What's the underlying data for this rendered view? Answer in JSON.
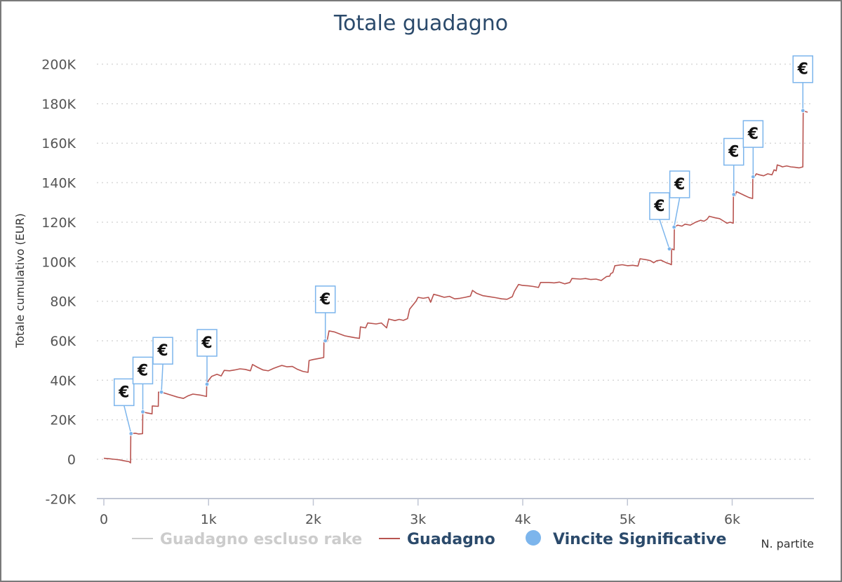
{
  "chart_data": {
    "type": "line",
    "title": "Totale guadagno",
    "ylabel": "Totale cumulativo (EUR)",
    "xlabel": "N. partite",
    "xlim": [
      0,
      6750
    ],
    "ylim": [
      -20000,
      200000
    ],
    "x_ticks": [
      {
        "value": 0,
        "label": "0"
      },
      {
        "value": 1000,
        "label": "1k"
      },
      {
        "value": 2000,
        "label": "2k"
      },
      {
        "value": 3000,
        "label": "3k"
      },
      {
        "value": 4000,
        "label": "4k"
      },
      {
        "value": 5000,
        "label": "5k"
      },
      {
        "value": 6000,
        "label": "6k"
      }
    ],
    "y_ticks": [
      {
        "value": -20000,
        "label": "-20K"
      },
      {
        "value": 0,
        "label": "0"
      },
      {
        "value": 20000,
        "label": "20K"
      },
      {
        "value": 40000,
        "label": "40K"
      },
      {
        "value": 60000,
        "label": "60K"
      },
      {
        "value": 80000,
        "label": "80K"
      },
      {
        "value": 100000,
        "label": "100K"
      },
      {
        "value": 120000,
        "label": "120K"
      },
      {
        "value": 140000,
        "label": "140K"
      },
      {
        "value": 160000,
        "label": "160K"
      },
      {
        "value": 180000,
        "label": "180K"
      },
      {
        "value": 200000,
        "label": "200K"
      }
    ],
    "grid": true,
    "legend_position": "bottom",
    "series": [
      {
        "name": "Guadagno escluso rake",
        "color": "#cccccc",
        "hidden": true,
        "points": []
      },
      {
        "name": "Guadagno",
        "color": "#b85450",
        "points": [
          [
            0,
            500
          ],
          [
            50,
            300
          ],
          [
            100,
            0
          ],
          [
            150,
            -300
          ],
          [
            200,
            -800
          ],
          [
            240,
            -1200
          ],
          [
            255,
            -1800
          ],
          [
            257,
            13000
          ],
          [
            300,
            13200
          ],
          [
            330,
            12800
          ],
          [
            370,
            13000
          ],
          [
            372,
            24000
          ],
          [
            410,
            23500
          ],
          [
            460,
            23000
          ],
          [
            462,
            27000
          ],
          [
            520,
            26800
          ],
          [
            522,
            34000
          ],
          [
            580,
            33500
          ],
          [
            640,
            32500
          ],
          [
            700,
            31500
          ],
          [
            760,
            30800
          ],
          [
            800,
            32000
          ],
          [
            850,
            33000
          ],
          [
            920,
            32500
          ],
          [
            980,
            31800
          ],
          [
            982,
            38000
          ],
          [
            1000,
            40000
          ],
          [
            1030,
            42000
          ],
          [
            1080,
            43000
          ],
          [
            1120,
            42200
          ],
          [
            1150,
            45000
          ],
          [
            1200,
            44800
          ],
          [
            1250,
            45200
          ],
          [
            1300,
            45800
          ],
          [
            1350,
            45500
          ],
          [
            1400,
            44800
          ],
          [
            1420,
            48000
          ],
          [
            1470,
            46500
          ],
          [
            1520,
            45200
          ],
          [
            1570,
            44800
          ],
          [
            1620,
            46000
          ],
          [
            1670,
            47000
          ],
          [
            1700,
            47500
          ],
          [
            1750,
            46800
          ],
          [
            1800,
            47000
          ],
          [
            1850,
            45500
          ],
          [
            1900,
            44500
          ],
          [
            1950,
            44000
          ],
          [
            1960,
            50000
          ],
          [
            2000,
            50500
          ],
          [
            2050,
            51000
          ],
          [
            2100,
            51500
          ],
          [
            2102,
            60000
          ],
          [
            2130,
            59500
          ],
          [
            2150,
            65000
          ],
          [
            2200,
            64500
          ],
          [
            2250,
            63500
          ],
          [
            2300,
            62500
          ],
          [
            2350,
            62000
          ],
          [
            2400,
            61500
          ],
          [
            2440,
            61200
          ],
          [
            2450,
            67000
          ],
          [
            2500,
            66500
          ],
          [
            2520,
            69000
          ],
          [
            2600,
            68500
          ],
          [
            2650,
            69000
          ],
          [
            2700,
            66500
          ],
          [
            2720,
            71000
          ],
          [
            2780,
            70200
          ],
          [
            2820,
            70800
          ],
          [
            2860,
            70300
          ],
          [
            2900,
            71200
          ],
          [
            2920,
            76000
          ],
          [
            2980,
            80000
          ],
          [
            3000,
            82000
          ],
          [
            3050,
            81500
          ],
          [
            3100,
            82000
          ],
          [
            3120,
            79500
          ],
          [
            3150,
            83500
          ],
          [
            3200,
            82800
          ],
          [
            3250,
            82000
          ],
          [
            3300,
            82500
          ],
          [
            3350,
            81200
          ],
          [
            3400,
            81500
          ],
          [
            3450,
            82000
          ],
          [
            3500,
            82600
          ],
          [
            3520,
            85500
          ],
          [
            3560,
            84000
          ],
          [
            3620,
            82800
          ],
          [
            3680,
            82300
          ],
          [
            3740,
            81800
          ],
          [
            3800,
            81200
          ],
          [
            3850,
            81000
          ],
          [
            3900,
            82300
          ],
          [
            3920,
            85000
          ],
          [
            3960,
            88500
          ],
          [
            4000,
            88000
          ],
          [
            4050,
            87800
          ],
          [
            4100,
            87500
          ],
          [
            4150,
            87000
          ],
          [
            4170,
            89500
          ],
          [
            4250,
            89500
          ],
          [
            4300,
            89300
          ],
          [
            4350,
            89700
          ],
          [
            4400,
            88800
          ],
          [
            4450,
            89500
          ],
          [
            4470,
            91500
          ],
          [
            4550,
            91200
          ],
          [
            4600,
            91500
          ],
          [
            4650,
            91000
          ],
          [
            4700,
            91200
          ],
          [
            4750,
            90500
          ],
          [
            4800,
            92500
          ],
          [
            4830,
            92700
          ],
          [
            4840,
            94000
          ],
          [
            4860,
            94500
          ],
          [
            4880,
            98000
          ],
          [
            4950,
            98500
          ],
          [
            5000,
            98000
          ],
          [
            5050,
            98200
          ],
          [
            5100,
            97800
          ],
          [
            5120,
            101500
          ],
          [
            5180,
            101000
          ],
          [
            5220,
            100500
          ],
          [
            5250,
            99500
          ],
          [
            5280,
            100500
          ],
          [
            5320,
            100800
          ],
          [
            5370,
            99500
          ],
          [
            5400,
            99000
          ],
          [
            5420,
            98500
          ],
          [
            5422,
            106500
          ],
          [
            5445,
            106000
          ],
          [
            5448,
            117500
          ],
          [
            5480,
            118500
          ],
          [
            5520,
            118000
          ],
          [
            5550,
            119000
          ],
          [
            5600,
            118500
          ],
          [
            5650,
            120000
          ],
          [
            5700,
            121000
          ],
          [
            5730,
            120500
          ],
          [
            5760,
            121500
          ],
          [
            5780,
            123000
          ],
          [
            5840,
            122200
          ],
          [
            5880,
            121800
          ],
          [
            5920,
            120500
          ],
          [
            5950,
            119500
          ],
          [
            5980,
            120000
          ],
          [
            6010,
            119500
          ],
          [
            6012,
            134000
          ],
          [
            6030,
            133500
          ],
          [
            6040,
            135500
          ],
          [
            6080,
            134500
          ],
          [
            6120,
            133500
          ],
          [
            6160,
            132500
          ],
          [
            6195,
            132000
          ],
          [
            6197,
            143000
          ],
          [
            6210,
            142500
          ],
          [
            6230,
            144500
          ],
          [
            6260,
            144000
          ],
          [
            6300,
            143500
          ],
          [
            6340,
            144500
          ],
          [
            6380,
            144000
          ],
          [
            6400,
            146500
          ],
          [
            6420,
            146000
          ],
          [
            6430,
            149000
          ],
          [
            6460,
            148500
          ],
          [
            6480,
            148000
          ],
          [
            6520,
            148500
          ],
          [
            6560,
            148000
          ],
          [
            6600,
            147800
          ],
          [
            6640,
            147500
          ],
          [
            6675,
            148000
          ],
          [
            6678,
            176500
          ],
          [
            6700,
            176000
          ],
          [
            6720,
            175700
          ]
        ]
      },
      {
        "name": "Vincite Significative",
        "color": "#7cb5ec",
        "marker_label": "€",
        "points": [
          {
            "x": 260,
            "y": 13000
          },
          {
            "x": 372,
            "y": 24000
          },
          {
            "x": 550,
            "y": 34000
          },
          {
            "x": 985,
            "y": 38000
          },
          {
            "x": 2115,
            "y": 60000
          },
          {
            "x": 5400,
            "y": 106500
          },
          {
            "x": 5445,
            "y": 117500
          },
          {
            "x": 6015,
            "y": 134000
          },
          {
            "x": 6200,
            "y": 143000
          },
          {
            "x": 6675,
            "y": 176500
          }
        ]
      }
    ]
  }
}
